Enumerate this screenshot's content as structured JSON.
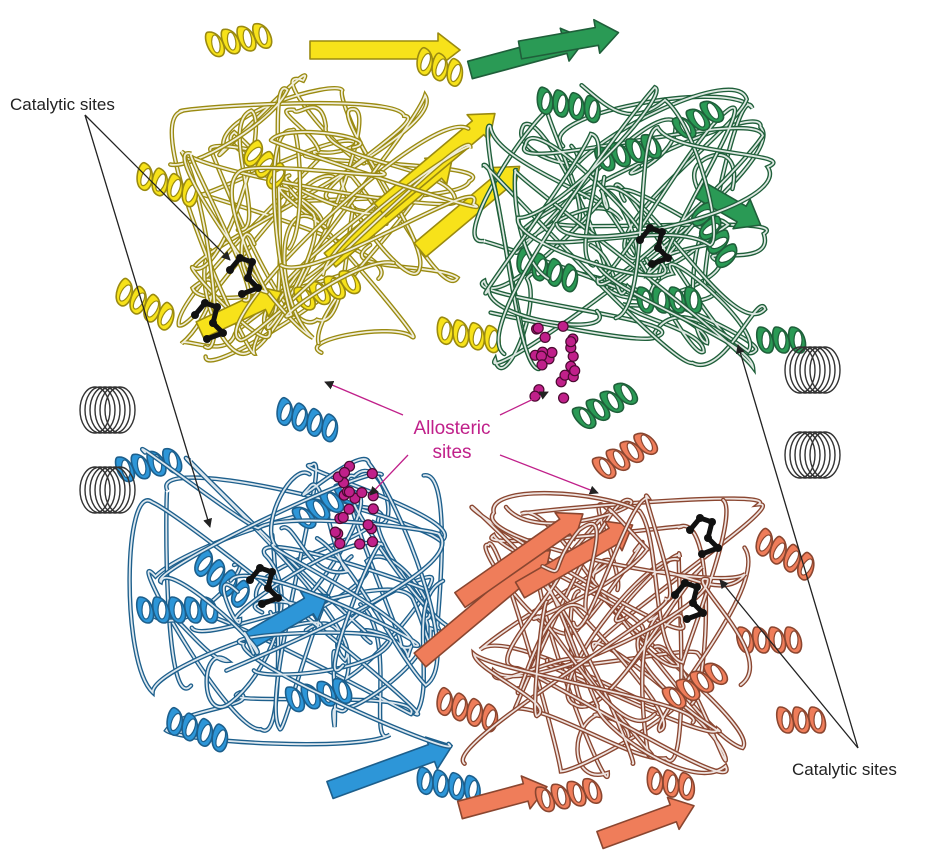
{
  "labels": {
    "catalytic_top_left": "Catalytic sites",
    "allosteric_line1": "Allosteric",
    "allosteric_line2": "sites",
    "catalytic_bottom_right": "Catalytic sites"
  },
  "colors": {
    "subunit_yellow": "#f7e21a",
    "subunit_green": "#2a9a55",
    "subunit_blue": "#2d96d8",
    "subunit_salmon": "#ef7d5a",
    "outline_yellow": "#9a8a10",
    "outline_green": "#1f5f3a",
    "outline_blue": "#1d5f8c",
    "outline_salmon": "#8a4630",
    "allosteric_ligand": "#c0208a",
    "catalytic_ligand": "#111111",
    "annotation_line": "#222222"
  },
  "icons": {
    "subunits": [
      "yellow-subunit-icon",
      "green-subunit-icon",
      "blue-subunit-icon",
      "salmon-subunit-icon"
    ],
    "sites": [
      "catalytic-site-icon",
      "allosteric-site-icon"
    ]
  }
}
